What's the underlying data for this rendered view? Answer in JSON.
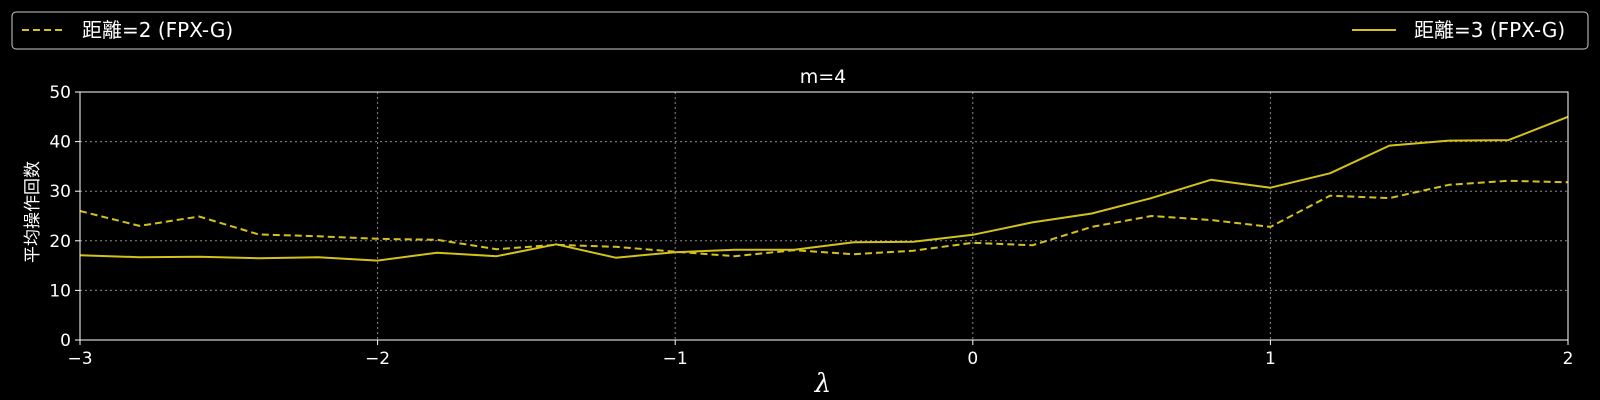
{
  "chart_data": {
    "type": "line",
    "title": "m=4",
    "xlabel": "λ",
    "ylabel": "平均操作回数",
    "xlim": [
      -3,
      2
    ],
    "ylim": [
      0,
      50
    ],
    "x_ticks": [
      -3,
      -2,
      -1,
      0,
      1,
      2
    ],
    "x_tick_labels": [
      "−3",
      "−2",
      "−1",
      "0",
      "1",
      "2"
    ],
    "y_ticks": [
      0,
      10,
      20,
      30,
      40,
      50
    ],
    "y_tick_labels": [
      "0",
      "10",
      "20",
      "30",
      "40",
      "50"
    ],
    "grid": true,
    "legend_placement": "top, spanning full width",
    "x": [
      -3.0,
      -2.8,
      -2.6,
      -2.4,
      -2.2,
      -2.0,
      -1.8,
      -1.6,
      -1.4,
      -1.2,
      -1.0,
      -0.8,
      -0.6,
      -0.4,
      -0.2,
      0.0,
      0.2,
      0.4,
      0.6,
      0.8,
      1.0,
      1.2,
      1.4,
      1.6,
      1.8,
      2.0
    ],
    "series": [
      {
        "name": "距離=2 (FPX-G)",
        "color": "#d4c21a",
        "dash": "dashed",
        "values": [
          26.0,
          23.0,
          24.9,
          21.3,
          20.9,
          20.4,
          20.2,
          18.3,
          19.2,
          18.8,
          17.8,
          16.9,
          18.1,
          17.3,
          18.0,
          19.6,
          19.1,
          22.8,
          25.0,
          24.2,
          22.8,
          29.1,
          28.6,
          31.3,
          32.1,
          31.8
        ]
      },
      {
        "name": "距離=3 (FPX-G)",
        "color": "#d4c21a",
        "dash": "solid",
        "values": [
          17.1,
          16.7,
          16.8,
          16.5,
          16.7,
          16.0,
          17.6,
          16.9,
          19.3,
          16.6,
          17.7,
          18.2,
          18.2,
          19.7,
          19.8,
          21.2,
          23.7,
          25.5,
          28.6,
          32.3,
          30.7,
          33.6,
          39.2,
          40.2,
          40.3,
          45.0
        ]
      }
    ]
  }
}
